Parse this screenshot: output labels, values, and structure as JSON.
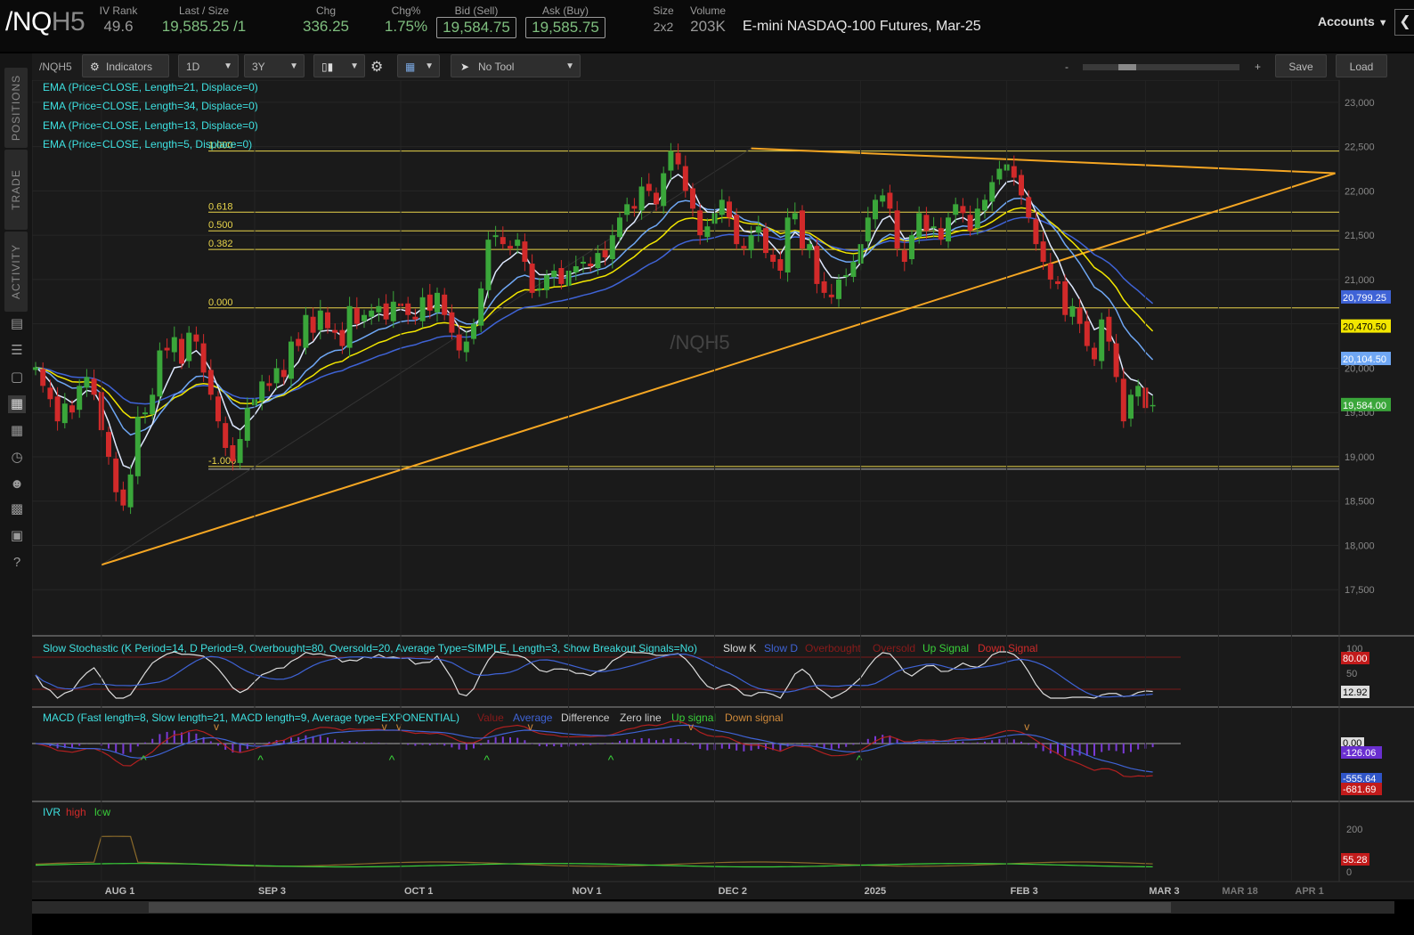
{
  "quote": {
    "symbol_main": "/NQ",
    "symbol_suffix": "H5",
    "iv_rank_label": "IV Rank",
    "iv_rank": "49.6",
    "last_label": "Last / Size",
    "last": "19,585.25 /1",
    "chg_label": "Chg",
    "chg": "336.25",
    "chgpct_label": "Chg%",
    "chgpct": "1.75%",
    "bid_label": "Bid (Sell)",
    "bid": "19,584.75",
    "ask_label": "Ask (Buy)",
    "ask": "19,585.75",
    "size_label": "Size",
    "size": "2x2",
    "volume_label": "Volume",
    "volume": "203K",
    "description": "E-mini NASDAQ-100 Futures, Mar-25"
  },
  "header": {
    "accounts_label": "Accounts",
    "accounts_icon": "chevron-down-icon",
    "collapse_icon": "chevron-left-icon"
  },
  "side_tabs": {
    "positions": "POSITIONS",
    "trade": "TRADE",
    "activity": "ACTIVITY"
  },
  "side_icons": [
    "news-icon",
    "list-icon",
    "tv-icon",
    "chart-icon",
    "grid-icon",
    "gauge-icon",
    "community-icon",
    "calendar-icon",
    "fi-icon",
    "help-icon"
  ],
  "toolbar": {
    "symbol": "/NQH5",
    "indicators_label": "Indicators",
    "timeframe": "1D",
    "range": "3Y",
    "tool": "No Tool",
    "zoom_minus": "-",
    "zoom_plus": "+",
    "save_label": "Save",
    "load_label": "Load",
    "chart_type_icon": "candlestick-icon",
    "settings_icon": "gear-icon",
    "drawing_icon": "drawing-tools-icon",
    "cursor_icon": "cursor-icon"
  },
  "colors": {
    "bull": "#3aa63a",
    "bear": "#d12a2a",
    "ema5": "#dfe9ff",
    "ema13": "#6fa7f4",
    "ema21": "#f2e600",
    "ema34": "#3f63d6",
    "fib": "#e9d54b",
    "trend": "#f5a623",
    "bg": "#1a1a1a"
  },
  "chart_data": {
    "type": "candlestick",
    "symbol": "/NQH5",
    "watermark": "/NQH5",
    "legend": [
      "EMA (Price=CLOSE, Length=21, Displace=0)",
      "EMA (Price=CLOSE, Length=34, Displace=0)",
      "EMA (Price=CLOSE, Length=13, Displace=0)",
      "EMA (Price=CLOSE, Length=5, Displace=0)"
    ],
    "y_ticks": [
      17500,
      18000,
      18500,
      19000,
      19500,
      20000,
      20500,
      21000,
      21500,
      22000,
      22500,
      23000
    ],
    "y_tick_labels": [
      "17,500",
      "18,000",
      "18,500",
      "19,000",
      "19,500",
      "20,000",
      "20,500",
      "21,000",
      "21,500",
      "22,000",
      "22,500",
      "23,000"
    ],
    "ylim": [
      17100,
      23150
    ],
    "x_labels": [
      "AUG 1",
      "SEP 3",
      "OCT 1",
      "NOV 1",
      "DEC 2",
      "2025",
      "FEB 3",
      "MAR 3",
      "MAR 18",
      "APR 1"
    ],
    "price_tags": [
      {
        "label": "20,799.25",
        "value": 20799.25,
        "color": "#3f63d6"
      },
      {
        "label": "20,470.50",
        "value": 20470.5,
        "color": "#f2e600"
      },
      {
        "label": "20,104.50",
        "value": 20104.5,
        "color": "#6fa7f4"
      },
      {
        "label": "19,584.00",
        "value": 19584,
        "color": "#3aa63a"
      }
    ],
    "fib_levels": [
      {
        "label": "1.000",
        "value": 22450
      },
      {
        "label": "0.618",
        "value": 21760
      },
      {
        "label": "0.500",
        "value": 21550
      },
      {
        "label": "0.382",
        "value": 21340
      },
      {
        "label": "0.000",
        "value": 20680
      },
      {
        "label": "-1.000",
        "value": 18890
      }
    ],
    "trendlines": [
      {
        "from": [
          "AUG 5",
          17780
        ],
        "to": [
          "DEC 16",
          22480
        ],
        "color": "#333333"
      },
      {
        "from": [
          "AUG 5",
          17780
        ],
        "to": [
          "MAR 27",
          22200
        ],
        "color": "#f5a623"
      },
      {
        "from": [
          "DEC 16",
          22480
        ],
        "to": [
          "MAR 27",
          22200
        ],
        "color": "#f5a623"
      }
    ],
    "closes": [
      20010,
      19800,
      19650,
      19400,
      19600,
      19500,
      19800,
      19900,
      19700,
      19300,
      19000,
      18600,
      18450,
      18800,
      19450,
      19500,
      19700,
      20200,
      20200,
      20350,
      20050,
      20400,
      20300,
      19950,
      19700,
      19400,
      19100,
      18950,
      19200,
      19550,
      19650,
      19850,
      19800,
      20000,
      19900,
      20300,
      20250,
      20600,
      20400,
      20650,
      20450,
      20400,
      20250,
      20700,
      20500,
      20600,
      20650,
      20700,
      20550,
      20750,
      20700,
      20600,
      20550,
      20800,
      20650,
      20850,
      20600,
      20400,
      20200,
      20300,
      20500,
      20900,
      21450,
      21500,
      21400,
      21350,
      21450,
      21200,
      20850,
      20900,
      21050,
      21100,
      20950,
      21100,
      21150,
      21200,
      21150,
      21300,
      21250,
      21500,
      21700,
      21850,
      21800,
      22050,
      22000,
      21850,
      22200,
      22450,
      22300,
      22000,
      21800,
      21500,
      21600,
      21750,
      21900,
      21700,
      21400,
      21350,
      21500,
      21600,
      21300,
      21200,
      21100,
      21700,
      21750,
      21350,
      21400,
      20950,
      20850,
      20800,
      21000,
      21050,
      21200,
      21400,
      21700,
      21900,
      21950,
      21800,
      21350,
      21200,
      21500,
      21750,
      21550,
      21600,
      21450,
      21700,
      21850,
      21750,
      21550,
      21800,
      21900,
      22100,
      22250,
      22300,
      22150,
      21950,
      21700,
      21400,
      21200,
      21000,
      20950,
      20600,
      20700,
      20500,
      20250,
      20100,
      20550,
      20300,
      19900,
      19400,
      19700,
      19800,
      19550,
      19584
    ],
    "slow_stochastic": {
      "title": "Slow Stochastic (K Period=14, D Period=9, Overbought=80, Oversold=20, Average Type=SIMPLE, Length=3, Show Breakout Signals=No)",
      "legend": [
        "Slow K",
        "Slow D",
        "Overbought",
        "Oversold",
        "Up Signal",
        "Down Signal"
      ],
      "y_ticks": [
        "100",
        "50"
      ],
      "tags": [
        {
          "label": "80.00",
          "value": 80
        },
        {
          "label": "12.92",
          "value": 12.92
        }
      ]
    },
    "macd": {
      "title": "MACD (Fast length=8, Slow length=21, MACD length=9, Average type=EXPONENTIAL)",
      "legend": [
        "Value",
        "Average",
        "Difference",
        "Zero line",
        "Up signal",
        "Down signal"
      ],
      "tags": [
        {
          "label": "0.00",
          "value": 0
        },
        {
          "label": "-126.06",
          "value": -126.06
        },
        {
          "label": "-555.64",
          "value": -555.64
        },
        {
          "label": "-681.69",
          "value": -681.69
        }
      ]
    },
    "ivr": {
      "title": "IVR",
      "legend": [
        "high",
        "low"
      ],
      "y_ticks": [
        "200",
        "0"
      ],
      "tags": [
        {
          "label": "55.28",
          "value": 55.28
        }
      ]
    }
  }
}
